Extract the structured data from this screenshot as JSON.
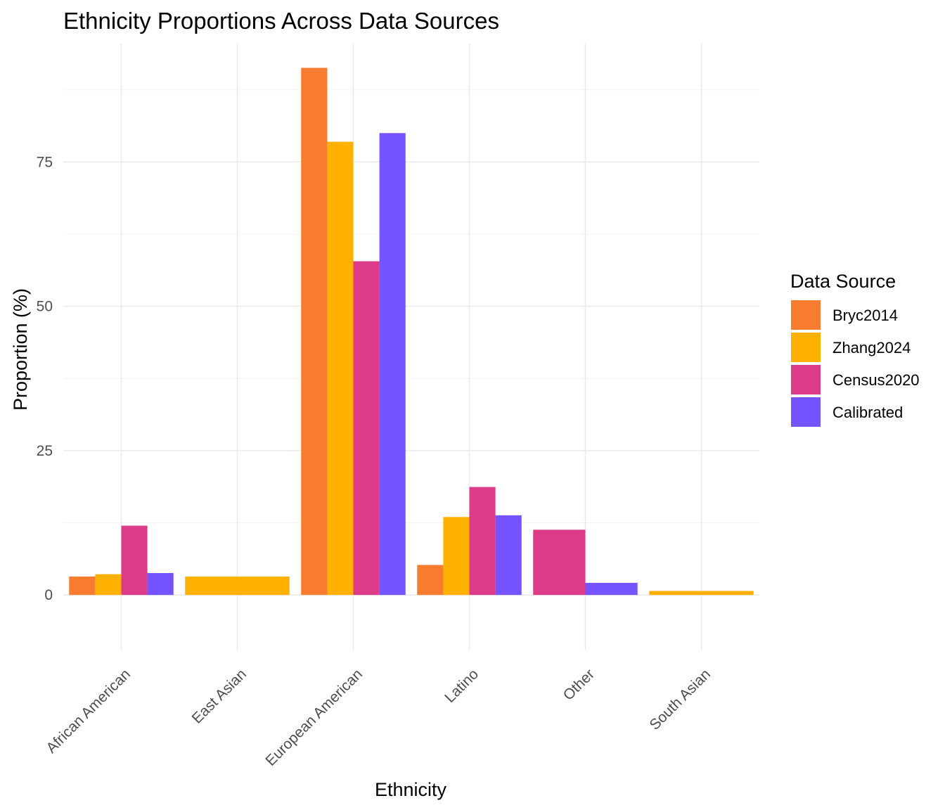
{
  "chart_data": {
    "type": "bar",
    "title": "Ethnicity Proportions Across Data Sources",
    "xlabel": "Ethnicity",
    "ylabel": "Proportion (%)",
    "ylim": [
      -9.6,
      95.5
    ],
    "yticks": [
      0,
      25,
      50,
      75
    ],
    "ytick_labels": [
      "0",
      "25",
      "50",
      "75"
    ],
    "grid": true,
    "legend_position": "right",
    "legend_title": "Data Source",
    "categories": [
      "African American",
      "East Asian",
      "European American",
      "Latino",
      "Other",
      "South Asian"
    ],
    "series": [
      {
        "name": "Bryc2014",
        "color": "#F87C30",
        "values": [
          3.2,
          null,
          91.3,
          5.2,
          null,
          null
        ]
      },
      {
        "name": "Zhang2024",
        "color": "#FFB000",
        "values": [
          3.6,
          3.2,
          78.5,
          13.5,
          null,
          0.7
        ]
      },
      {
        "name": "Census2020",
        "color": "#DC3B87",
        "values": [
          12.0,
          null,
          57.8,
          18.7,
          11.3,
          null
        ]
      },
      {
        "name": "Calibrated",
        "color": "#7553FF",
        "values": [
          3.8,
          null,
          80.0,
          13.8,
          2.1,
          null
        ]
      }
    ]
  }
}
